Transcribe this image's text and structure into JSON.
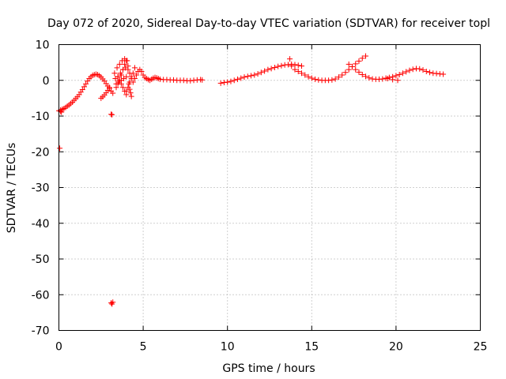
{
  "chart_data": {
    "type": "scatter",
    "title": "Day 072 of 2020, Sidereal Day-to-day VTEC variation (SDTVAR) for receiver topl",
    "xlabel": "GPS time / hours",
    "ylabel": "SDTVAR / TECUs",
    "xlim": [
      0,
      25
    ],
    "ylim": [
      -70,
      10
    ],
    "xticks": [
      0,
      5,
      10,
      15,
      20,
      25
    ],
    "yticks": [
      10,
      0,
      -10,
      -20,
      -30,
      -40,
      -50,
      -60,
      -70
    ],
    "xtick_labels": [
      "0",
      "5",
      "10",
      "15",
      "20",
      "25"
    ],
    "ytick_labels": [
      "10",
      "0",
      "-10",
      "-20",
      "-30",
      "-40",
      "-50",
      "-60",
      "-70"
    ],
    "grid": true,
    "marker": "+",
    "color": "#ff0000",
    "series": [
      {
        "name": "SDTVAR",
        "x": [
          0.0,
          0.1,
          0.2,
          0.3,
          0.4,
          0.5,
          0.6,
          0.7,
          0.8,
          0.9,
          1.0,
          1.1,
          1.2,
          1.3,
          1.4,
          1.5,
          1.6,
          1.7,
          1.8,
          1.9,
          2.0,
          2.1,
          2.2,
          2.3,
          2.4,
          2.5,
          2.6,
          2.7,
          2.8,
          2.9,
          3.0,
          3.1,
          3.2,
          0.05,
          0.1,
          0.15,
          3.1,
          3.15,
          3.1,
          3.15,
          3.2,
          2.5,
          2.6,
          2.7,
          2.8,
          2.9,
          3.0,
          3.3,
          3.35,
          3.4,
          3.45,
          3.5,
          3.55,
          3.6,
          3.65,
          3.7,
          3.75,
          3.8,
          3.85,
          3.9,
          3.95,
          4.0,
          4.05,
          4.1,
          4.15,
          4.2,
          4.25,
          4.3,
          3.4,
          3.5,
          3.6,
          3.7,
          3.8,
          3.9,
          4.0,
          4.1,
          4.2,
          4.3,
          4.4,
          4.5,
          4.6,
          4.7,
          4.8,
          4.9,
          5.0,
          4.0,
          4.1,
          4.2,
          4.3,
          4.4,
          4.5,
          3.5,
          3.6,
          3.7,
          3.8,
          3.9,
          4.0,
          5.1,
          5.2,
          5.3,
          5.4,
          5.5,
          5.6,
          5.7,
          5.8,
          5.9,
          6.0,
          6.2,
          6.4,
          6.6,
          6.8,
          7.0,
          7.2,
          7.4,
          7.6,
          7.8,
          8.0,
          8.2,
          8.4,
          8.5,
          9.6,
          9.8,
          10.0,
          10.2,
          10.4,
          10.6,
          10.8,
          11.0,
          11.2,
          11.4,
          11.6,
          11.8,
          12.0,
          12.2,
          12.4,
          12.6,
          12.8,
          13.0,
          13.2,
          13.4,
          13.6,
          13.8,
          14.0,
          14.2,
          14.4,
          13.7,
          13.8,
          14.0,
          14.2,
          14.4,
          14.6,
          14.8,
          15.0,
          15.2,
          15.4,
          15.6,
          15.8,
          16.0,
          16.2,
          16.4,
          16.6,
          16.8,
          17.0,
          17.2,
          17.4,
          17.6,
          17.8,
          18.0,
          18.2,
          17.2,
          17.4,
          17.6,
          17.8,
          18.0,
          18.2,
          18.4,
          18.6,
          18.8,
          19.0,
          19.2,
          19.4,
          19.6,
          19.8,
          20.0,
          20.2,
          20.4,
          20.6,
          20.8,
          21.0,
          21.2,
          21.4,
          21.6,
          21.8,
          22.0,
          22.2,
          22.4,
          22.6,
          22.8,
          19.5,
          19.8,
          20.1
        ],
        "y": [
          -8.5,
          -8.3,
          -8.1,
          -7.9,
          -7.6,
          -7.2,
          -6.9,
          -6.5,
          -6.1,
          -5.6,
          -5.1,
          -4.6,
          -4.0,
          -3.3,
          -2.6,
          -1.8,
          -1.0,
          -0.2,
          0.5,
          1.0,
          1.4,
          1.6,
          1.7,
          1.6,
          1.3,
          0.9,
          0.4,
          -0.2,
          -0.9,
          -1.6,
          -2.3,
          -3.0,
          -3.6,
          -19.0,
          -8.7,
          -8.9,
          -9.5,
          -9.6,
          -62.3,
          -62.6,
          -62.1,
          -5.0,
          -4.6,
          -4.1,
          -3.5,
          -2.8,
          -2.0,
          2.0,
          0.5,
          -1.0,
          3.5,
          1.0,
          -0.5,
          4.5,
          2.0,
          0.0,
          5.5,
          3.0,
          0.5,
          6.0,
          3.5,
          1.0,
          5.5,
          3.0,
          -1.0,
          -2.5,
          -3.5,
          -4.5,
          -2.0,
          -1.0,
          0.0,
          1.5,
          3.0,
          4.5,
          5.5,
          4.0,
          2.0,
          0.5,
          -0.5,
          0.5,
          1.5,
          2.5,
          3.0,
          2.5,
          1.5,
          -3.0,
          -2.0,
          -0.5,
          1.0,
          2.0,
          3.5,
          1.0,
          0.0,
          -1.0,
          -2.0,
          -3.0,
          -4.0,
          0.8,
          0.5,
          0.2,
          0.0,
          0.3,
          0.6,
          0.8,
          0.7,
          0.5,
          0.3,
          0.2,
          0.2,
          0.1,
          0.1,
          0.0,
          0.0,
          0.0,
          -0.1,
          -0.1,
          0.0,
          0.1,
          0.2,
          0.1,
          -0.8,
          -0.6,
          -0.5,
          -0.3,
          0.0,
          0.3,
          0.6,
          0.9,
          1.1,
          1.3,
          1.5,
          1.8,
          2.2,
          2.6,
          3.0,
          3.3,
          3.6,
          3.9,
          4.1,
          4.3,
          4.4,
          4.5,
          4.4,
          4.2,
          4.0,
          6.0,
          4.0,
          3.0,
          2.5,
          2.0,
          1.5,
          1.0,
          0.6,
          0.3,
          0.1,
          0.0,
          0.0,
          0.0,
          0.1,
          0.4,
          0.9,
          1.5,
          2.2,
          3.0,
          3.8,
          4.6,
          5.4,
          6.2,
          6.8,
          4.5,
          3.8,
          3.0,
          2.3,
          1.6,
          1.1,
          0.7,
          0.4,
          0.3,
          0.3,
          0.4,
          0.6,
          0.8,
          1.0,
          1.3,
          1.6,
          2.0,
          2.4,
          2.8,
          3.1,
          3.3,
          3.2,
          2.9,
          2.5,
          2.2,
          2.0,
          1.9,
          1.8,
          1.7,
          0.5,
          0.2,
          0.0
        ]
      }
    ]
  }
}
